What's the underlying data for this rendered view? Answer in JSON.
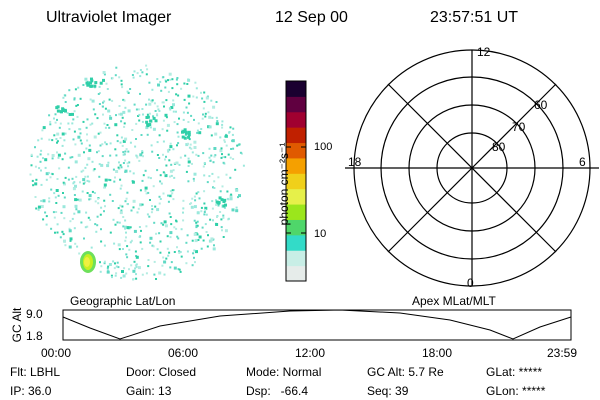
{
  "header": {
    "instrument": "Ultraviolet Imager",
    "date": "12 Sep 00",
    "time": "23:57:51 UT"
  },
  "colorbar": {
    "label": "photon cm⁻²s⁻¹",
    "ticks": [
      "100",
      "10"
    ]
  },
  "polar_plot": {
    "mlt_labels": [
      "12",
      "18",
      "6",
      "0"
    ],
    "mlat_labels": [
      "60",
      "70",
      "80"
    ]
  },
  "panel_labels": {
    "left": "Geographic Lat/Lon",
    "right": "Apex MLat/MLT"
  },
  "altitude_plot": {
    "axis_label": "GC Alt",
    "y_ticks": [
      "9.0",
      "1.8"
    ],
    "x_ticks": [
      "00:00",
      "06:00",
      "12:00",
      "18:00",
      "23:59"
    ]
  },
  "status": {
    "flt": "Flt: LBHL",
    "ip": "IP: 36.0",
    "door": "Door: Closed",
    "gain": "Gain: 13",
    "mode": "Mode: Normal",
    "dsp": "Dsp:   -66.4",
    "gc_alt": "GC Alt: 5.7 Re",
    "seq": "Seq: 39",
    "glat": "GLat: *****",
    "glon": "GLon: *****"
  },
  "colors": {
    "colorbar_stops": [
      "#e6ecea",
      "#c8eee6",
      "#33dbc8",
      "#4fd66a",
      "#9be61c",
      "#e6f04a",
      "#f0d01a",
      "#f5a000",
      "#e05a00",
      "#c02000",
      "#a00030",
      "#600040",
      "#1a0030"
    ],
    "image_speckle": [
      "#9ae8dc",
      "#5fd9c4",
      "#2fcfa8",
      "#b3ece2"
    ],
    "hotspot": [
      "#6ee05a",
      "#c8f020",
      "#f0f040"
    ]
  }
}
